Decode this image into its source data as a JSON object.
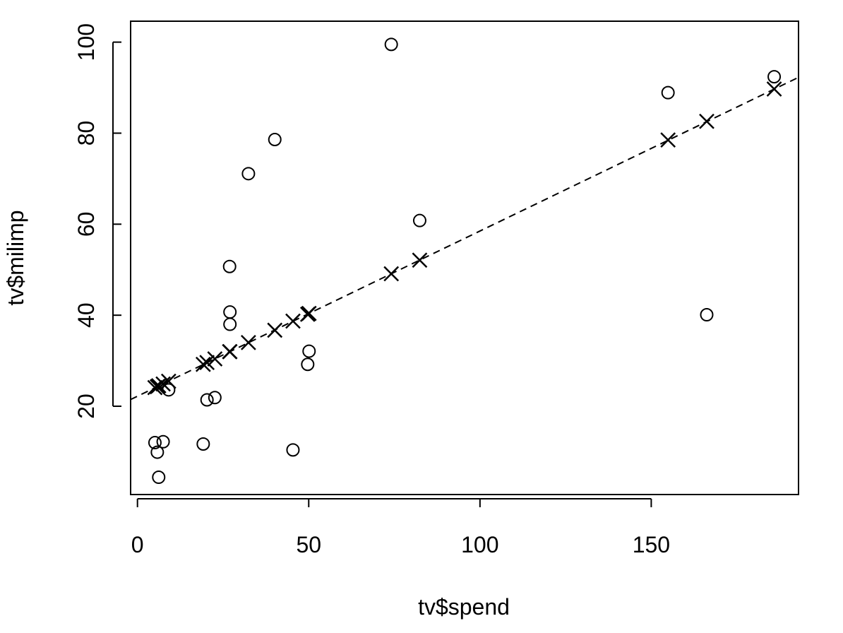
{
  "chart_data": {
    "type": "scatter",
    "title": "",
    "xlabel": "tv$spend",
    "ylabel": "tv$milimp",
    "xlim": [
      -2,
      193
    ],
    "ylim": [
      0.6,
      104.6
    ],
    "xticks": [
      0,
      50,
      100,
      150
    ],
    "yticks": [
      20,
      40,
      60,
      80,
      100
    ],
    "grid": false,
    "series": [
      {
        "marker": "circle",
        "points": [
          [
            74.1,
            99.5
          ],
          [
            185.9,
            92.4
          ],
          [
            154.9,
            88.9
          ],
          [
            40.1,
            78.6
          ],
          [
            32.4,
            71.1
          ],
          [
            82.4,
            60.8
          ],
          [
            26.9,
            50.7
          ],
          [
            27.0,
            40.7
          ],
          [
            166.2,
            40.1
          ],
          [
            27.0,
            38.0
          ],
          [
            50.1,
            32.1
          ],
          [
            49.7,
            29.2
          ],
          [
            22.6,
            21.9
          ],
          [
            20.3,
            21.4
          ],
          [
            9.1,
            23.6
          ],
          [
            5.1,
            12.0
          ],
          [
            7.5,
            12.2
          ],
          [
            19.2,
            11.7
          ],
          [
            45.4,
            10.4
          ],
          [
            5.8,
            9.9
          ],
          [
            6.2,
            4.4
          ]
        ]
      },
      {
        "marker": "x",
        "points": [
          [
            185.9,
            89.7
          ],
          [
            166.2,
            82.6
          ],
          [
            154.9,
            78.5
          ],
          [
            82.4,
            52.1
          ],
          [
            74.1,
            49.1
          ],
          [
            50.1,
            40.4
          ],
          [
            49.7,
            40.2
          ],
          [
            45.4,
            38.7
          ],
          [
            40.1,
            36.7
          ],
          [
            32.4,
            34.0
          ],
          [
            27.0,
            32.0
          ],
          [
            26.9,
            32.0
          ],
          [
            22.6,
            30.4
          ],
          [
            20.3,
            29.6
          ],
          [
            19.2,
            29.2
          ],
          [
            9.1,
            25.5
          ],
          [
            7.5,
            24.9
          ],
          [
            6.2,
            24.5
          ],
          [
            5.8,
            24.3
          ],
          [
            5.1,
            24.1
          ]
        ]
      }
    ],
    "fit_line": {
      "style": "dashed",
      "intercept": 22.2,
      "slope": 0.363
    }
  }
}
